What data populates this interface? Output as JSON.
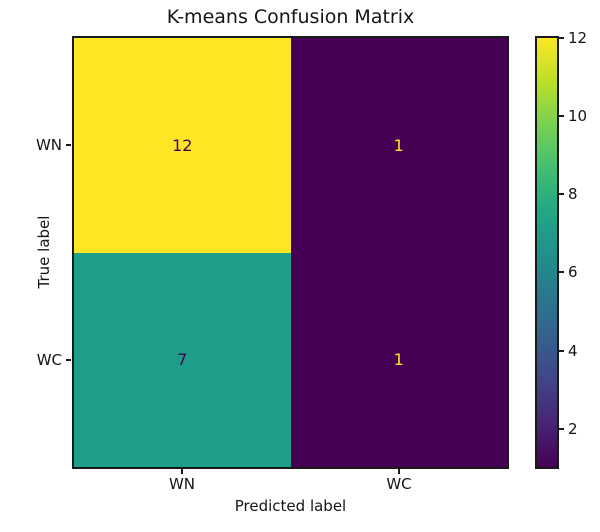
{
  "figure": {
    "background": "#ffffff"
  },
  "chart_data": {
    "type": "heatmap",
    "title": "K-means Confusion Matrix",
    "xlabel": "Predicted label",
    "ylabel": "True label",
    "x_tick_labels": [
      "WN",
      "WC"
    ],
    "y_tick_labels": [
      "WN",
      "WC"
    ],
    "matrix": [
      [
        12,
        1
      ],
      [
        7,
        1
      ]
    ],
    "vmin": 1,
    "vmax": 12,
    "colormap": "viridis",
    "grid": false,
    "legend_position": "right-colorbar",
    "colorbar_ticks": [
      "2",
      "4",
      "6",
      "8",
      "10",
      "12"
    ],
    "colormap_stops": [
      "#440154",
      "#482475",
      "#414487",
      "#355f8d",
      "#2a788e",
      "#21918c",
      "#22a884",
      "#44bf70",
      "#7ad151",
      "#bddf26",
      "#fde725"
    ],
    "cells": [
      {
        "row": "WN",
        "col": "WN",
        "value": "12",
        "bg": "#fde725",
        "fg": "#440154"
      },
      {
        "row": "WN",
        "col": "WC",
        "value": "1",
        "bg": "#440154",
        "fg": "#fde725"
      },
      {
        "row": "WC",
        "col": "WN",
        "value": "7",
        "bg": "#1f9e89",
        "fg": "#440154"
      },
      {
        "row": "WC",
        "col": "WC",
        "value": "1",
        "bg": "#440154",
        "fg": "#fde725"
      }
    ]
  }
}
